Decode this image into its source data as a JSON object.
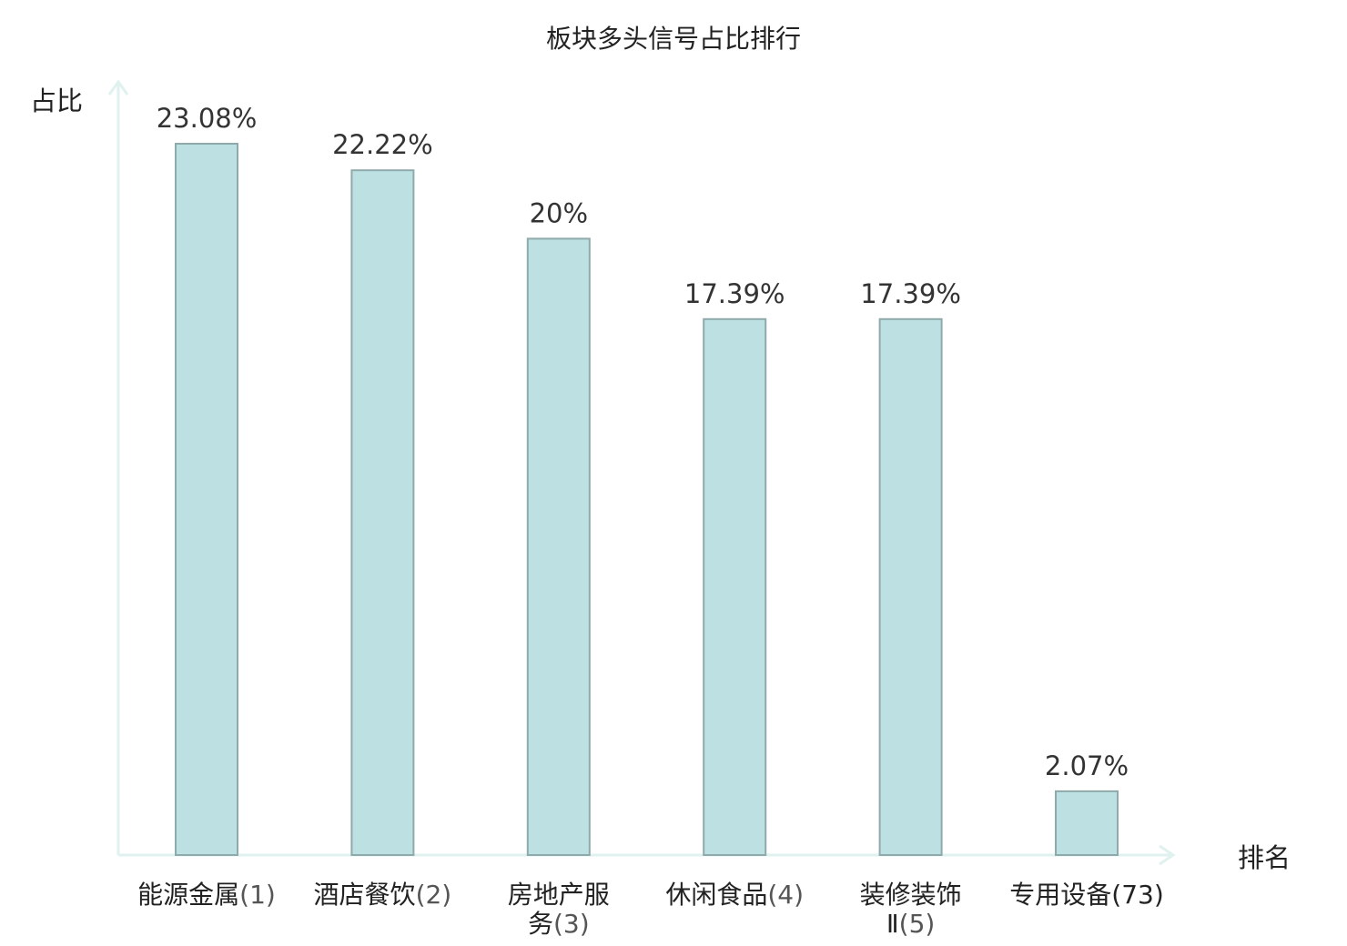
{
  "chart_data": {
    "type": "bar",
    "title": "板块多头信号占比排行",
    "ylabel": "占比",
    "xlabel": "排名",
    "categories": [
      {
        "name_lines": [
          "能源金属"
        ],
        "rank": "(1)",
        "highlight": false
      },
      {
        "name_lines": [
          "酒店餐饮"
        ],
        "rank": "(2)",
        "highlight": false
      },
      {
        "name_lines": [
          "房地产服",
          "务"
        ],
        "rank": "(3)",
        "highlight": false
      },
      {
        "name_lines": [
          "休闲食品"
        ],
        "rank": "(4)",
        "highlight": false
      },
      {
        "name_lines": [
          "装修装饰",
          "Ⅱ"
        ],
        "rank": "(5)",
        "highlight": false
      },
      {
        "name_lines": [
          "专用设备"
        ],
        "rank": "(73)",
        "highlight": true
      }
    ],
    "values": [
      23.08,
      22.22,
      20,
      17.39,
      17.39,
      2.07
    ],
    "value_labels": [
      "23.08%",
      "22.22%",
      "20%",
      "17.39%",
      "17.39%",
      "2.07%"
    ],
    "ylim": [
      0,
      25
    ],
    "grid": false,
    "colors": {
      "bar_fill": "#bde1e3",
      "bar_stroke": "#8faaab",
      "axis": "#dff2ef",
      "highlight_text": "#e01010"
    }
  }
}
